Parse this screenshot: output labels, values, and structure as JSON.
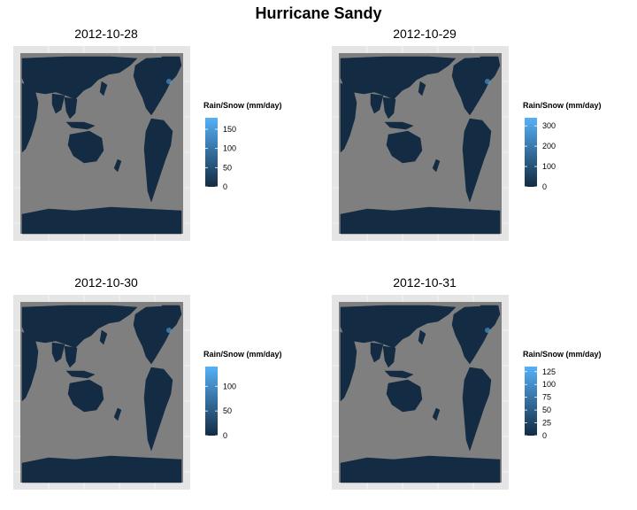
{
  "title": "Hurricane Sandy",
  "chart_data": [
    {
      "type": "heatmap",
      "title": "2012-10-28",
      "legend_title": "Rain/Snow (mm/day)",
      "legend_range": [
        0,
        180
      ],
      "legend_ticks": [
        0,
        50,
        100,
        150
      ],
      "colors": {
        "low": "#132b43",
        "high": "#56b1f7",
        "ocean": "#7f7f7f",
        "panel": "#e5e5e5"
      }
    },
    {
      "type": "heatmap",
      "title": "2012-10-29",
      "legend_title": "Rain/Snow (mm/day)",
      "legend_range": [
        0,
        340
      ],
      "legend_ticks": [
        0,
        100,
        200,
        300
      ],
      "colors": {
        "low": "#132b43",
        "high": "#56b1f7",
        "ocean": "#7f7f7f",
        "panel": "#e5e5e5"
      }
    },
    {
      "type": "heatmap",
      "title": "2012-10-30",
      "legend_title": "Rain/Snow (mm/day)",
      "legend_range": [
        0,
        140
      ],
      "legend_ticks": [
        0,
        50,
        100
      ],
      "colors": {
        "low": "#132b43",
        "high": "#56b1f7",
        "ocean": "#7f7f7f",
        "panel": "#e5e5e5"
      }
    },
    {
      "type": "heatmap",
      "title": "2012-10-31",
      "legend_title": "Rain/Snow (mm/day)",
      "legend_range": [
        0,
        135
      ],
      "legend_ticks": [
        0,
        25,
        50,
        75,
        100,
        125
      ],
      "colors": {
        "low": "#132b43",
        "high": "#56b1f7",
        "ocean": "#7f7f7f",
        "panel": "#e5e5e5"
      }
    }
  ]
}
